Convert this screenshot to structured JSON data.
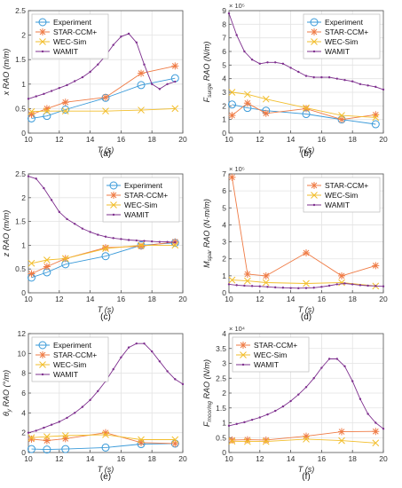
{
  "figure": {
    "background": "#ffffff"
  },
  "styles": {
    "Experiment": {
      "color": "#3a9ad9",
      "marker": "circle",
      "line": "solid"
    },
    "STAR-CCM+": {
      "color": "#ef7b45",
      "marker": "asterisk",
      "line": "solid"
    },
    "WEC-Sim": {
      "color": "#f2be2c",
      "marker": "x",
      "line": "solid"
    },
    "WAMIT": {
      "color": "#7e2f8e",
      "marker": "dot",
      "line": "solid"
    }
  },
  "chart_data": [
    {
      "panel": "(a)",
      "type": "line",
      "ylabel": "x RAO (m/m)",
      "ylabel_parts": {
        "main": "x RAO (m/m)"
      },
      "xlabel": "T  (s)",
      "xlim": [
        10,
        20
      ],
      "ylim": [
        0,
        2.5
      ],
      "xticks": [
        10,
        12,
        14,
        16,
        18,
        20
      ],
      "yticks": [
        0,
        0.5,
        1,
        1.5,
        2,
        2.5
      ],
      "ytick_labels": [
        "0",
        "0.5",
        "1",
        "1.5",
        "2",
        "2.5"
      ],
      "legend": {
        "position": "top-left",
        "entries": [
          "Experiment",
          "STAR-CCM+",
          "WEC-Sim",
          "WAMIT"
        ]
      },
      "grid": true,
      "series": [
        {
          "name": "Experiment",
          "x": [
            10.2,
            11.2,
            12.4,
            15.0,
            17.3,
            19.5
          ],
          "y": [
            0.3,
            0.35,
            0.48,
            0.72,
            0.98,
            1.12
          ]
        },
        {
          "name": "STAR-CCM+",
          "x": [
            10.2,
            11.2,
            12.4,
            15.0,
            17.3,
            19.5
          ],
          "y": [
            0.38,
            0.5,
            0.63,
            0.73,
            1.22,
            1.37
          ]
        },
        {
          "name": "WEC-Sim",
          "x": [
            10.2,
            11.2,
            12.4,
            15.0,
            17.3,
            19.5
          ],
          "y": [
            0.44,
            0.45,
            0.45,
            0.45,
            0.47,
            0.5
          ]
        },
        {
          "name": "WAMIT",
          "x": [
            10.0,
            10.5,
            11.0,
            11.5,
            12.0,
            12.5,
            13.0,
            13.5,
            14.0,
            14.5,
            15.0,
            15.5,
            16.0,
            16.5,
            17.0,
            17.5,
            18.0,
            18.5,
            19.0,
            19.5
          ],
          "y": [
            0.7,
            0.75,
            0.8,
            0.86,
            0.92,
            0.98,
            1.06,
            1.14,
            1.25,
            1.4,
            1.58,
            1.8,
            1.97,
            2.03,
            1.85,
            1.4,
            1.0,
            0.9,
            1.0,
            1.05
          ]
        }
      ]
    },
    {
      "panel": "(b)",
      "type": "line",
      "ylabel": "F surge RAO (N/m)",
      "ylabel_parts": {
        "main": "F",
        "sub": "surge",
        "rest": " RAO (N/m)"
      },
      "xlabel": "T  (s)",
      "xlim": [
        10,
        20
      ],
      "ylim": [
        0,
        900000.0
      ],
      "exponent": "× 10⁵",
      "xticks": [
        10,
        12,
        14,
        16,
        18,
        20
      ],
      "yticks": [
        0,
        100000.0,
        200000.0,
        300000.0,
        400000.0,
        500000.0,
        600000.0,
        700000.0,
        800000.0,
        900000.0
      ],
      "ytick_labels": [
        "0",
        "1",
        "2",
        "3",
        "4",
        "5",
        "6",
        "7",
        "8",
        "9"
      ],
      "legend": {
        "position": "top-right",
        "entries": [
          "Experiment",
          "STAR-CCM+",
          "WEC-Sim",
          "WAMIT"
        ]
      },
      "grid": true,
      "series": [
        {
          "name": "Experiment",
          "x": [
            10.2,
            11.2,
            12.4,
            15.0,
            17.3,
            19.5
          ],
          "y": [
            210000,
            185000,
            165000,
            140000,
            100000,
            65000
          ]
        },
        {
          "name": "STAR-CCM+",
          "x": [
            10.2,
            11.2,
            12.4,
            15.0,
            17.3,
            19.5
          ],
          "y": [
            130000,
            220000,
            145000,
            180000,
            100000,
            135000
          ]
        },
        {
          "name": "WEC-Sim",
          "x": [
            10.2,
            11.2,
            12.4,
            15.0,
            17.3,
            19.5
          ],
          "y": [
            300000,
            285000,
            250000,
            185000,
            130000,
            115000
          ]
        },
        {
          "name": "WAMIT",
          "x": [
            10.0,
            10.5,
            11.0,
            11.5,
            12.0,
            12.5,
            13.0,
            13.5,
            14.0,
            14.5,
            15.0,
            15.5,
            16.0,
            16.5,
            17.0,
            17.5,
            18.0,
            18.5,
            19.0,
            19.5,
            20.0
          ],
          "y": [
            880000,
            720000,
            600000,
            540000,
            510000,
            520000,
            520000,
            510000,
            480000,
            450000,
            420000,
            410000,
            410000,
            410000,
            400000,
            390000,
            380000,
            360000,
            350000,
            340000,
            320000
          ]
        }
      ]
    },
    {
      "panel": "(c)",
      "type": "line",
      "ylabel": "z RAO (m/m)",
      "ylabel_parts": {
        "main": "z RAO (m/m)"
      },
      "xlabel": "T  (s)",
      "xlim": [
        10,
        20
      ],
      "ylim": [
        0,
        2.5
      ],
      "xticks": [
        10,
        12,
        14,
        16,
        18,
        20
      ],
      "yticks": [
        0,
        0.5,
        1,
        1.5,
        2,
        2.5
      ],
      "ytick_labels": [
        "0",
        "0.5",
        "1",
        "1.5",
        "2",
        "2.5"
      ],
      "legend": {
        "position": "top-right",
        "entries": [
          "Experiment",
          "STAR-CCM+",
          "WEC-Sim",
          "WAMIT"
        ]
      },
      "grid": true,
      "series": [
        {
          "name": "Experiment",
          "x": [
            10.2,
            11.2,
            12.4,
            15.0,
            17.3,
            19.5
          ],
          "y": [
            0.32,
            0.43,
            0.6,
            0.77,
            1.0,
            1.05
          ]
        },
        {
          "name": "STAR-CCM+",
          "x": [
            10.2,
            11.2,
            12.4,
            15.0,
            17.3,
            19.5
          ],
          "y": [
            0.4,
            0.55,
            0.72,
            0.95,
            0.98,
            1.07
          ]
        },
        {
          "name": "WEC-Sim",
          "x": [
            10.2,
            11.2,
            12.4,
            15.0,
            17.3,
            19.5
          ],
          "y": [
            0.62,
            0.69,
            0.72,
            0.93,
            1.0,
            1.0
          ]
        },
        {
          "name": "WAMIT",
          "x": [
            10.0,
            10.5,
            11.0,
            11.5,
            12.0,
            12.5,
            13.0,
            13.5,
            14.0,
            14.5,
            15.0,
            15.5,
            16.0,
            16.5,
            17.0,
            17.5,
            18.0,
            18.5,
            19.0,
            19.5
          ],
          "y": [
            2.45,
            2.4,
            2.2,
            1.95,
            1.7,
            1.55,
            1.45,
            1.35,
            1.28,
            1.22,
            1.18,
            1.15,
            1.13,
            1.11,
            1.1,
            1.09,
            1.08,
            1.07,
            1.07,
            1.06
          ]
        }
      ]
    },
    {
      "panel": "(d)",
      "type": "line",
      "ylabel": "M spar RAO (N·m/m)",
      "ylabel_parts": {
        "main": "M",
        "sub": "spar",
        "rest": " RAO (N·m/m)"
      },
      "xlabel": "T  (s)",
      "xlim": [
        10,
        20
      ],
      "ylim": [
        0,
        700000.0
      ],
      "exponent": "× 10⁵",
      "xticks": [
        10,
        12,
        14,
        16,
        18,
        20
      ],
      "yticks": [
        0,
        100000.0,
        200000.0,
        300000.0,
        400000.0,
        500000.0,
        600000.0,
        700000.0
      ],
      "ytick_labels": [
        "0",
        "1",
        "2",
        "3",
        "4",
        "5",
        "6",
        "7"
      ],
      "legend": {
        "position": "top-right",
        "entries": [
          "STAR-CCM+",
          "WEC-Sim",
          "WAMIT"
        ]
      },
      "grid": true,
      "series": [
        {
          "name": "STAR-CCM+",
          "x": [
            10.2,
            11.2,
            12.4,
            15.0,
            17.3,
            19.5
          ],
          "y": [
            680000,
            110000,
            100000,
            235000,
            100000,
            160000
          ]
        },
        {
          "name": "WEC-Sim",
          "x": [
            10.2,
            11.2,
            12.4,
            15.0,
            17.3,
            19.5
          ],
          "y": [
            75000,
            70000,
            60000,
            55000,
            60000,
            40000
          ]
        },
        {
          "name": "WAMIT",
          "x": [
            10.0,
            10.5,
            11.0,
            11.5,
            12.0,
            12.5,
            13.0,
            13.5,
            14.0,
            14.5,
            15.0,
            15.5,
            16.0,
            16.5,
            17.0,
            17.5,
            18.0,
            18.5,
            19.0,
            19.5,
            20.0
          ],
          "y": [
            50000,
            45000,
            42000,
            40000,
            38000,
            35000,
            32000,
            30000,
            28000,
            27000,
            28000,
            30000,
            35000,
            42000,
            50000,
            55000,
            50000,
            45000,
            42000,
            40000,
            38000
          ]
        }
      ]
    },
    {
      "panel": "(e)",
      "type": "line",
      "ylabel": "θy RAO (°/m)",
      "ylabel_parts": {
        "main": "θ",
        "sub": "y",
        "rest": " RAO (°/m)"
      },
      "xlabel": "T  (s)",
      "xlim": [
        10,
        20
      ],
      "ylim": [
        0,
        12
      ],
      "xticks": [
        10,
        12,
        14,
        16,
        18,
        20
      ],
      "yticks": [
        0,
        2,
        4,
        6,
        8,
        10,
        12
      ],
      "ytick_labels": [
        "0",
        "2",
        "4",
        "6",
        "8",
        "10",
        "12"
      ],
      "legend": {
        "position": "top-left",
        "entries": [
          "Experiment",
          "STAR-CCM+",
          "WEC-Sim",
          "WAMIT"
        ]
      },
      "grid": true,
      "series": [
        {
          "name": "Experiment",
          "x": [
            10.2,
            11.2,
            12.4,
            15.0,
            17.3,
            19.5
          ],
          "y": [
            0.35,
            0.3,
            0.35,
            0.5,
            0.85,
            0.9
          ]
        },
        {
          "name": "STAR-CCM+",
          "x": [
            10.2,
            11.2,
            12.4,
            15.0,
            17.3,
            19.5
          ],
          "y": [
            1.35,
            1.2,
            1.4,
            2.0,
            1.0,
            0.9
          ]
        },
        {
          "name": "WEC-Sim",
          "x": [
            10.2,
            11.2,
            12.4,
            15.0,
            17.3,
            19.5
          ],
          "y": [
            1.5,
            1.6,
            1.7,
            1.8,
            1.3,
            1.3
          ]
        },
        {
          "name": "WAMIT",
          "x": [
            10.0,
            10.5,
            11.0,
            11.5,
            12.0,
            12.5,
            13.0,
            13.5,
            14.0,
            14.5,
            15.0,
            15.5,
            16.0,
            16.5,
            17.0,
            17.5,
            18.0,
            18.5,
            19.0,
            19.5,
            20.0
          ],
          "y": [
            2.0,
            2.2,
            2.5,
            2.8,
            3.1,
            3.5,
            4.0,
            4.6,
            5.3,
            6.2,
            7.2,
            8.4,
            9.6,
            10.6,
            11.0,
            11.0,
            10.2,
            9.2,
            8.2,
            7.4,
            6.9
          ]
        }
      ]
    },
    {
      "panel": "(f)",
      "type": "line",
      "ylabel": "F mooring RAO (N/m)",
      "ylabel_parts": {
        "main": "F",
        "sub": "mooring",
        "rest": " RAO (N/m)"
      },
      "xlabel": "T  (s)",
      "xlim": [
        10,
        20
      ],
      "ylim": [
        0,
        40000.0
      ],
      "exponent": "× 10⁴",
      "xticks": [
        10,
        12,
        14,
        16,
        18,
        20
      ],
      "yticks": [
        0,
        5000,
        10000,
        15000,
        20000,
        25000,
        30000,
        35000,
        40000
      ],
      "ytick_labels": [
        "0",
        "0.5",
        "1",
        "1.5",
        "2",
        "2.5",
        "3",
        "3.5",
        "4"
      ],
      "legend": {
        "position": "top-left",
        "entries": [
          "STAR-CCM+",
          "WEC-Sim",
          "WAMIT"
        ]
      },
      "grid": true,
      "series": [
        {
          "name": "STAR-CCM+",
          "x": [
            10.2,
            11.2,
            12.4,
            15.0,
            17.3,
            19.5
          ],
          "y": [
            4200,
            4300,
            4200,
            5500,
            7000,
            7100
          ]
        },
        {
          "name": "WEC-Sim",
          "x": [
            10.2,
            11.2,
            12.4,
            15.0,
            17.3,
            19.5
          ],
          "y": [
            3800,
            3700,
            3700,
            4500,
            4000,
            3200
          ]
        },
        {
          "name": "WAMIT",
          "x": [
            10.0,
            10.5,
            11.0,
            11.5,
            12.0,
            12.5,
            13.0,
            13.5,
            14.0,
            14.5,
            15.0,
            15.5,
            16.0,
            16.5,
            17.0,
            17.5,
            18.0,
            18.5,
            19.0,
            19.5,
            20.0
          ],
          "y": [
            9000,
            9600,
            10200,
            11000,
            11800,
            12800,
            14000,
            15500,
            17300,
            19500,
            22000,
            25000,
            28500,
            31500,
            31500,
            29000,
            24000,
            18000,
            13000,
            10000,
            8000
          ]
        }
      ]
    }
  ]
}
